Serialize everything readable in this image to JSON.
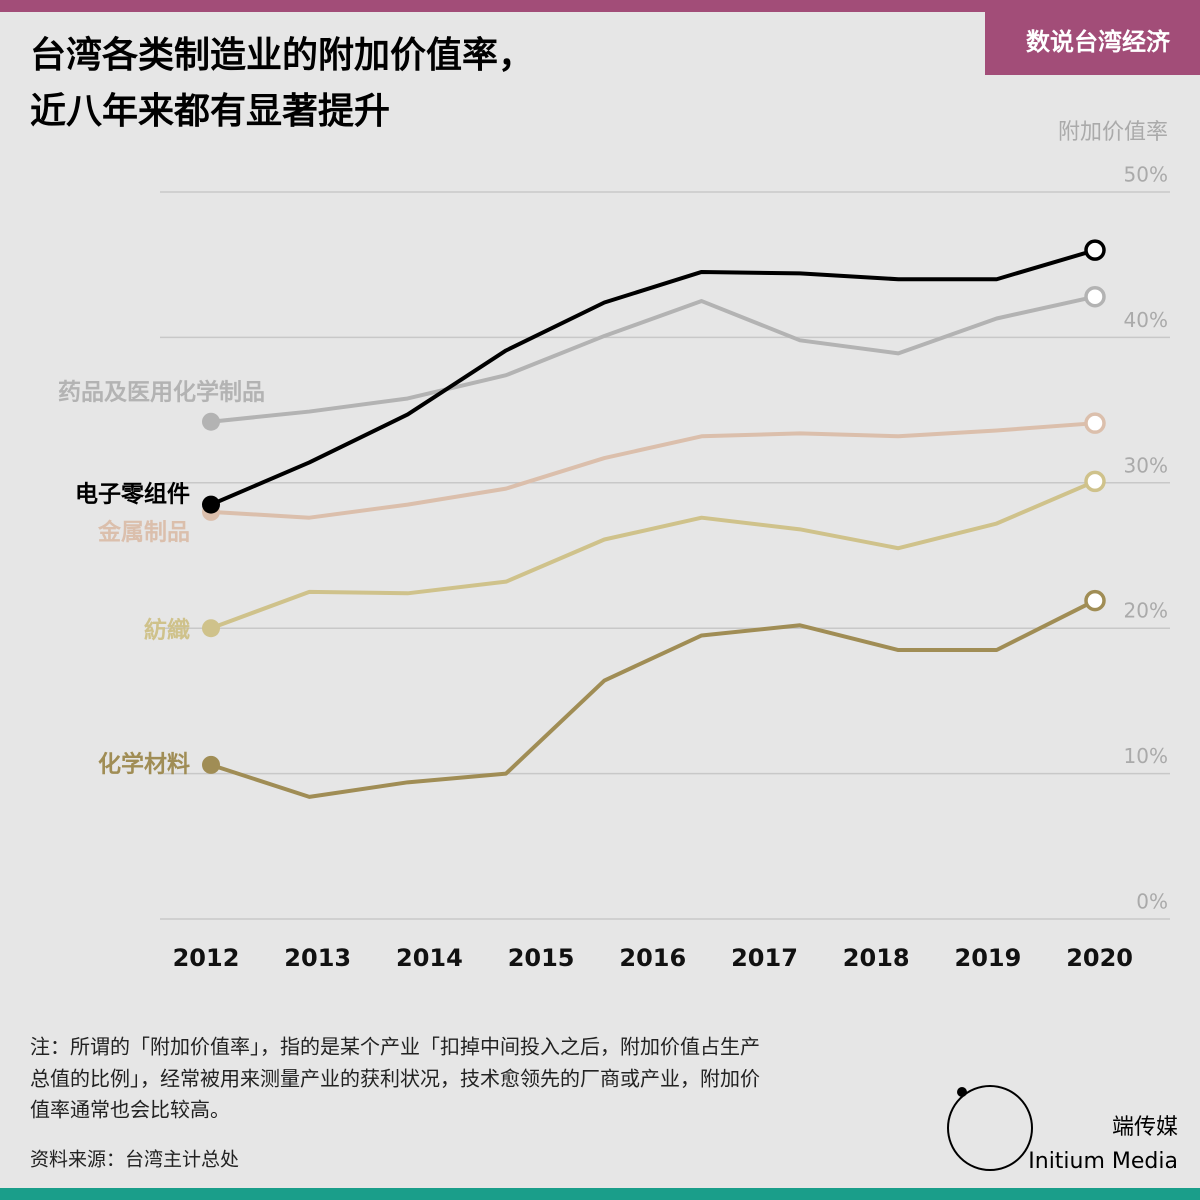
{
  "header": {
    "tag": "数说台湾经济"
  },
  "chart_data": {
    "type": "line",
    "title": [
      "台湾各类制造业的附加价值率，",
      "近八年来都有显著提升"
    ],
    "y_label": "附加价值率",
    "x": [
      2012,
      2012.89,
      2013.78,
      2014.67,
      2015.56,
      2016.44,
      2017.33,
      2018.22,
      2019.11,
      2020
    ],
    "xlim": [
      2012,
      2020
    ],
    "xticks": [
      2012,
      2013,
      2014,
      2015,
      2016,
      2017,
      2018,
      2019,
      2020
    ],
    "ylim": [
      0,
      50
    ],
    "yticks": [
      {
        "value": 0,
        "label": "0%"
      },
      {
        "value": 10,
        "label": "10%"
      },
      {
        "value": 20,
        "label": "20%"
      },
      {
        "value": 30,
        "label": "30%"
      },
      {
        "value": 40,
        "label": "40%"
      },
      {
        "value": 50,
        "label": "50%"
      }
    ],
    "grid": true,
    "series": [
      {
        "name": "药品及医用化学制品",
        "color": "#b3b3b3",
        "values": [
          34.2,
          34.9,
          35.8,
          37.4,
          40.1,
          42.5,
          39.8,
          38.9,
          41.3,
          42.8
        ]
      },
      {
        "name": "金属制品",
        "color": "#dbbfac",
        "values": [
          28.0,
          27.6,
          28.5,
          29.6,
          31.7,
          33.2,
          33.4,
          33.2,
          33.6,
          34.1
        ]
      },
      {
        "name": "紡織",
        "color": "#cfc28b",
        "values": [
          20.0,
          22.5,
          22.4,
          23.2,
          26.1,
          27.6,
          26.8,
          25.5,
          27.2,
          30.1
        ]
      },
      {
        "name": "化学材料",
        "color": "#a08d55",
        "values": [
          10.6,
          8.4,
          9.4,
          10.0,
          16.4,
          19.5,
          20.2,
          18.5,
          18.5,
          21.9
        ]
      },
      {
        "name": "电子零组件",
        "color": "#000000",
        "values": [
          28.5,
          31.4,
          34.7,
          39.1,
          42.4,
          44.5,
          44.4,
          44.0,
          44.0,
          46.0
        ]
      }
    ]
  },
  "footer": {
    "note": [
      "注：所谓的「附加价值率」，指的是某个产业「扣掉中间投入之后，附加价值占生产",
      "总值的比例」，经常被用来测量产业的获利状况，技术愈领先的厂商或产业，附加价",
      "值率通常也会比较高。"
    ],
    "source": "资料来源：台湾主计总处",
    "brand": "端传媒",
    "brand_en": "Initium Media"
  }
}
